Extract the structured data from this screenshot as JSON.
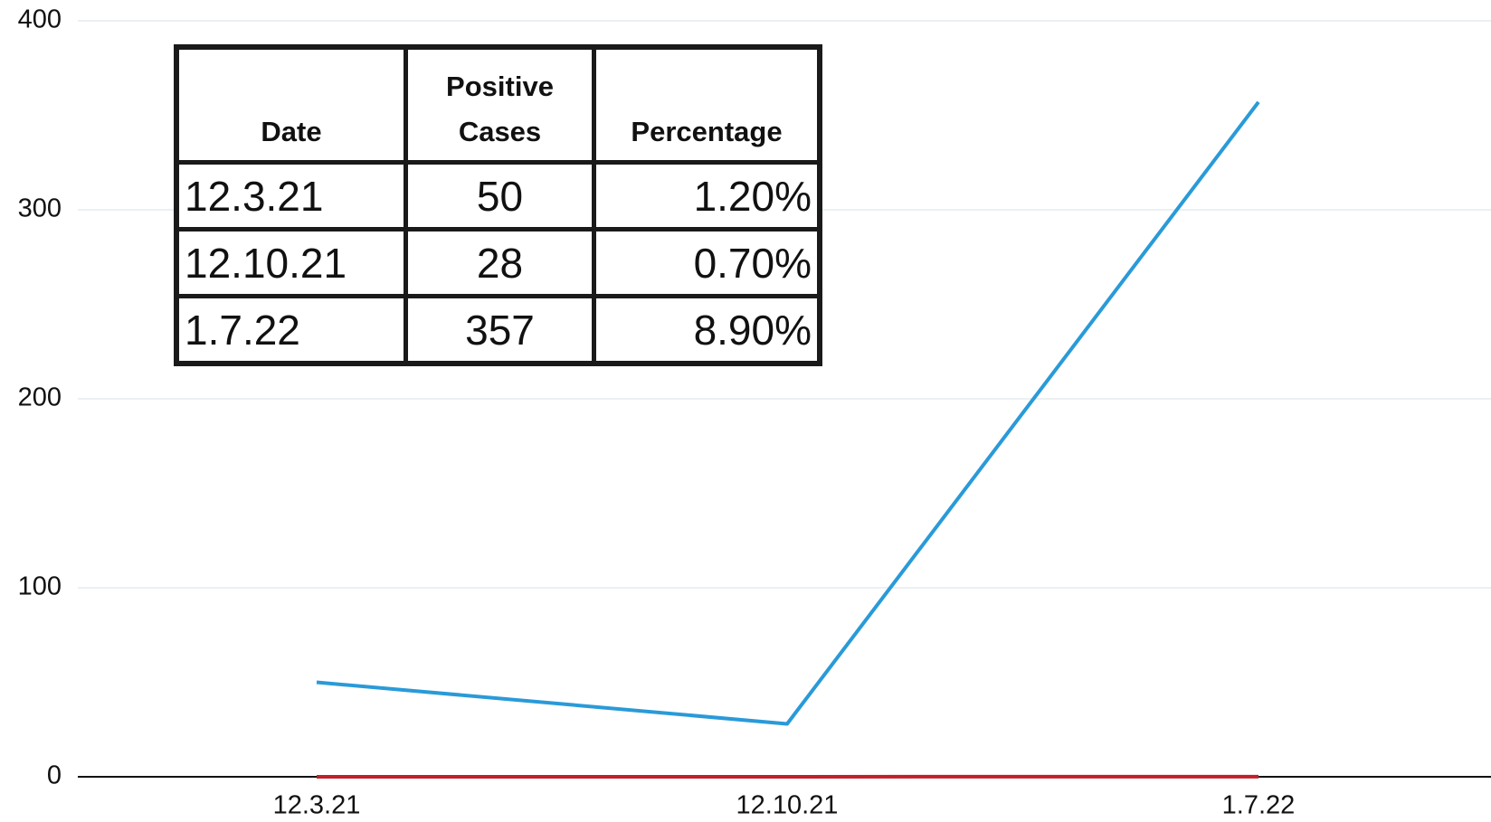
{
  "chart_data": {
    "type": "line",
    "categories": [
      "12.3.21",
      "12.10.21",
      "1.7.22"
    ],
    "series": [
      {
        "color": "#2a9ad8",
        "values": [
          50,
          28,
          357
        ]
      },
      {
        "color": "#c0202a",
        "values": [
          0.012,
          0.007,
          0.089
        ]
      }
    ],
    "ylim": [
      0,
      400
    ],
    "yticks": [
      0,
      100,
      200,
      300,
      400
    ],
    "grid": true
  },
  "table": {
    "header": [
      "Date",
      "Positive Cases",
      "Percentage"
    ],
    "align": [
      "left",
      "center",
      "right"
    ],
    "rows": [
      [
        "12.3.21",
        "50",
        "1.20%"
      ],
      [
        "12.10.21",
        "28",
        "0.70%"
      ],
      [
        "1.7.22",
        "357",
        "8.90%"
      ]
    ]
  }
}
